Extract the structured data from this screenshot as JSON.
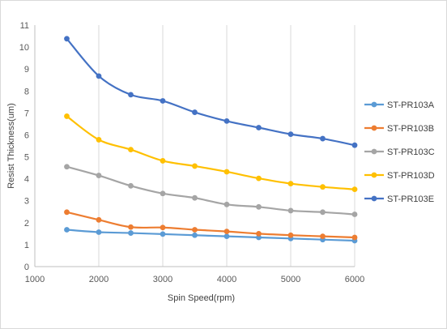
{
  "chart_data": {
    "type": "line",
    "xlabel": "Spin Speed(rpm)",
    "ylabel": "Resist Thickness(um)",
    "xlim": [
      1000,
      6000
    ],
    "ylim": [
      0,
      11
    ],
    "xticks": [
      1000,
      2000,
      3000,
      4000,
      5000,
      6000
    ],
    "yticks": [
      0,
      1,
      2,
      3,
      4,
      5,
      6,
      7,
      8,
      9,
      10,
      11
    ],
    "grid": "vertical",
    "legend_position": "right",
    "x": [
      1500,
      2000,
      2500,
      3000,
      3500,
      4000,
      4500,
      5000,
      5500,
      6000
    ],
    "series": [
      {
        "name": "ST-PR103A",
        "color": "#5b9bd5",
        "values": [
          1.68,
          1.57,
          1.53,
          1.48,
          1.43,
          1.38,
          1.33,
          1.28,
          1.23,
          1.18
        ]
      },
      {
        "name": "ST-PR103B",
        "color": "#ed7d31",
        "values": [
          2.48,
          2.13,
          1.8,
          1.78,
          1.68,
          1.6,
          1.5,
          1.43,
          1.38,
          1.33
        ]
      },
      {
        "name": "ST-PR103C",
        "color": "#a5a5a5",
        "values": [
          4.55,
          4.15,
          3.68,
          3.33,
          3.13,
          2.83,
          2.72,
          2.55,
          2.48,
          2.38
        ]
      },
      {
        "name": "ST-PR103D",
        "color": "#ffc000",
        "values": [
          6.85,
          5.78,
          5.33,
          4.82,
          4.58,
          4.32,
          4.02,
          3.78,
          3.63,
          3.52
        ]
      },
      {
        "name": "ST-PR103E",
        "color": "#4472c4",
        "values": [
          10.38,
          8.68,
          7.83,
          7.55,
          7.03,
          6.63,
          6.33,
          6.03,
          5.83,
          5.53
        ]
      }
    ]
  }
}
